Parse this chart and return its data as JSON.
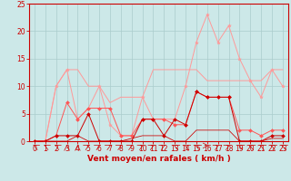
{
  "x": [
    0,
    1,
    2,
    3,
    4,
    5,
    6,
    7,
    8,
    9,
    10,
    11,
    12,
    13,
    14,
    15,
    16,
    17,
    18,
    19,
    20,
    21,
    22,
    23
  ],
  "bg_color": "#cce8e8",
  "grid_color": "#aacccc",
  "xlabel": "Vent moyen/en rafales ( km/h )",
  "xlabel_color": "#cc0000",
  "ylim": [
    0,
    25
  ],
  "xlim": [
    -0.5,
    23.5
  ],
  "yticks": [
    0,
    5,
    10,
    15,
    20,
    25
  ],
  "xticks": [
    0,
    1,
    2,
    3,
    4,
    5,
    6,
    7,
    8,
    9,
    10,
    11,
    12,
    13,
    14,
    15,
    16,
    17,
    18,
    19,
    20,
    21,
    22,
    23
  ],
  "line1_color": "#ff9999",
  "line1_y": [
    0,
    0,
    10,
    13,
    13,
    10,
    10,
    7,
    8,
    8,
    8,
    13,
    13,
    13,
    13,
    13,
    11,
    11,
    11,
    11,
    11,
    11,
    13,
    13
  ],
  "line2_color": "#ff9999",
  "line2_y": [
    0,
    0,
    10,
    13,
    4,
    6,
    10,
    3,
    1,
    1,
    8,
    4,
    4,
    4,
    10,
    18,
    23,
    18,
    21,
    15,
    11,
    8,
    13,
    10
  ],
  "line3_color": "#ff5555",
  "line3_y": [
    0,
    0,
    1,
    7,
    4,
    6,
    6,
    6,
    1,
    1,
    4,
    4,
    4,
    3,
    3,
    9,
    8,
    8,
    8,
    2,
    2,
    1,
    2,
    2
  ],
  "line4_color": "#cc0000",
  "line4_y": [
    0,
    0,
    1,
    1,
    1,
    5,
    0,
    0,
    0,
    0,
    4,
    4,
    1,
    4,
    3,
    9,
    8,
    8,
    8,
    0,
    0,
    0,
    1,
    1
  ],
  "line5_color": "#cc0000",
  "line5_y": [
    0,
    0,
    0,
    0,
    1,
    0,
    0,
    0,
    0,
    0.5,
    1,
    1,
    1,
    0,
    0,
    2,
    2,
    2,
    2,
    0,
    0,
    0,
    0.5,
    0.5
  ],
  "tick_fontsize": 5.5,
  "xlabel_fontsize": 6.5,
  "lw": 0.7,
  "ms": 2.0
}
